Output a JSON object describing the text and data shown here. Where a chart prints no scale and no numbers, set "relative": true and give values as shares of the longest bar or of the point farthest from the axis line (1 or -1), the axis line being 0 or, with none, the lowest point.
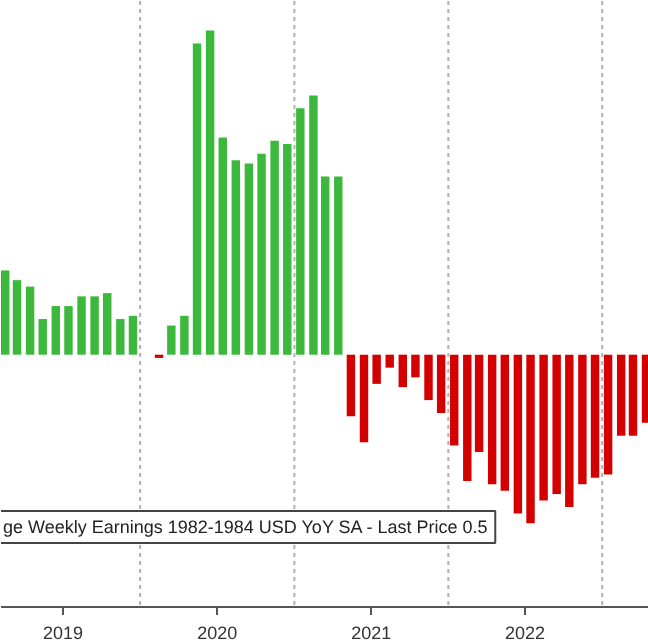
{
  "chart_data": {
    "type": "bar",
    "relative": true,
    "x": [
      "2019-02-15",
      "2019-03-15",
      "2019-04-15",
      "2019-05-15",
      "2019-06-15",
      "2019-07-15",
      "2019-08-15",
      "2019-09-15",
      "2019-10-15",
      "2019-11-15",
      "2019-12-15",
      "2020-01-15",
      "2020-02-15",
      "2020-03-15",
      "2020-04-15",
      "2020-05-15",
      "2020-06-15",
      "2020-07-15",
      "2020-08-15",
      "2020-09-15",
      "2020-10-15",
      "2020-11-15",
      "2020-12-15",
      "2021-01-15",
      "2021-02-15",
      "2021-03-15",
      "2021-04-15",
      "2021-05-15",
      "2021-06-15",
      "2021-07-15",
      "2021-08-15",
      "2021-09-15",
      "2021-10-15",
      "2021-11-15",
      "2021-12-15",
      "2022-01-15",
      "2022-02-15",
      "2022-03-15",
      "2022-04-15",
      "2022-05-15",
      "2022-06-15",
      "2022-07-15",
      "2022-08-15",
      "2022-09-15",
      "2022-10-15",
      "2022-11-15",
      "2022-12-15",
      "2023-01-15",
      "2023-02-15",
      "2023-03-15",
      "2023-04-15"
    ],
    "values": [
      0.26,
      0.23,
      0.21,
      0.11,
      0.15,
      0.15,
      0.18,
      0.18,
      0.19,
      0.11,
      0.12,
      0,
      -0.01,
      0.09,
      0.12,
      0.96,
      1,
      0.67,
      0.6,
      0.59,
      0.62,
      0.66,
      0.65,
      0.76,
      0.8,
      0.55,
      0.55,
      -0.19,
      -0.27,
      -0.09,
      -0.04,
      -0.1,
      -0.07,
      -0.14,
      -0.18,
      -0.28,
      -0.39,
      -0.3,
      -0.4,
      -0.42,
      -0.49,
      -0.52,
      -0.45,
      -0.43,
      -0.47,
      -0.4,
      -0.38,
      -0.37,
      -0.25,
      -0.25,
      -0.21
    ],
    "colors": [
      "#3cb83c",
      "#3cb83c",
      "#3cb83c",
      "#3cb83c",
      "#3cb83c",
      "#3cb83c",
      "#3cb83c",
      "#3cb83c",
      "#3cb83c",
      "#3cb83c",
      "#3cb83c",
      "#3cb83c",
      "#d40000",
      "#3cb83c",
      "#3cb83c",
      "#3cb83c",
      "#3cb83c",
      "#3cb83c",
      "#3cb83c",
      "#3cb83c",
      "#3cb83c",
      "#3cb83c",
      "#3cb83c",
      "#3cb83c",
      "#3cb83c",
      "#3cb83c",
      "#3cb83c",
      "#d40000",
      "#d40000",
      "#d40000",
      "#d40000",
      "#d40000",
      "#d40000",
      "#d40000",
      "#d40000",
      "#d40000",
      "#d40000",
      "#d40000",
      "#d40000",
      "#d40000",
      "#d40000",
      "#d40000",
      "#d40000",
      "#d40000",
      "#d40000",
      "#d40000",
      "#d40000",
      "#d40000",
      "#d40000",
      "#d40000",
      "#d40000"
    ],
    "xlim": [
      "2019-02-05",
      "2023-04-22"
    ],
    "xticks": [
      {
        "value": "2019-07-02",
        "label": "2019"
      },
      {
        "value": "2020-07-02",
        "label": "2020"
      },
      {
        "value": "2021-07-02",
        "label": "2021"
      },
      {
        "value": "2022-07-02",
        "label": "2022"
      }
    ],
    "ref_lines": [
      {
        "axis": "x",
        "value": "2020-01-01",
        "color": "#b0b0b0",
        "line_style": "dashed"
      },
      {
        "axis": "x",
        "value": "2021-01-01",
        "color": "#b0b0b0",
        "line_style": "dashed"
      },
      {
        "axis": "x",
        "value": "2022-01-01",
        "color": "#b0b0b0",
        "line_style": "dashed"
      },
      {
        "axis": "x",
        "value": "2023-01-01",
        "color": "#b0b0b0",
        "line_style": "dashed"
      }
    ],
    "annotations": [
      "ge Weekly Earnings 1982-1984 USD YoY SA - Last Price 0.5"
    ]
  }
}
